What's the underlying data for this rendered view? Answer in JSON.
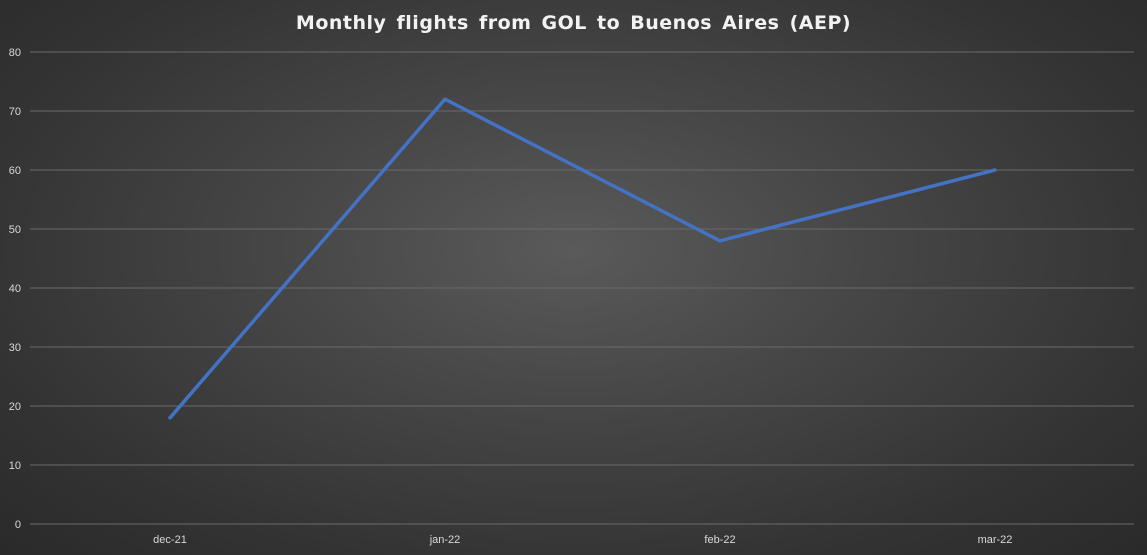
{
  "chart_data": {
    "type": "line",
    "title": "Monthly flights from GOL to Buenos Aires (AEP)",
    "categories": [
      "dec-21",
      "jan-22",
      "feb-22",
      "mar-22"
    ],
    "series": [
      {
        "values": [
          18,
          72,
          48,
          60
        ]
      }
    ],
    "ylim": [
      0,
      80
    ],
    "yticks": [
      0,
      10,
      20,
      30,
      40,
      50,
      60,
      70,
      80
    ],
    "grid": true,
    "line_color": "#4472c4",
    "background": "#474747"
  }
}
